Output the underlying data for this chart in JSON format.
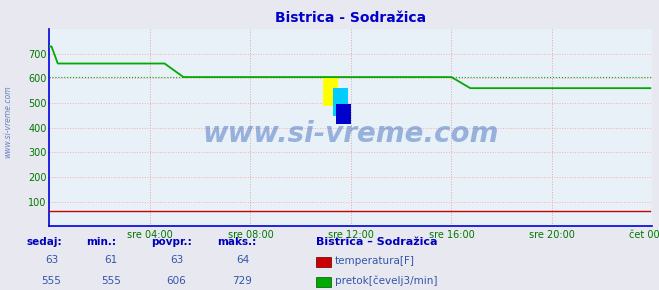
{
  "title": "Bistrica - Sodražica",
  "title_color": "#0000cc",
  "bg_color": "#e8e8f0",
  "plot_bg_color": "#e8f0f8",
  "grid_color_h": "#ffaaaa",
  "grid_color_v": "#ddaaaa",
  "xlabel_color": "#007700",
  "ylabel_color": "#007700",
  "border_color": "#0000dd",
  "xlim": [
    0,
    288
  ],
  "ylim": [
    0,
    800
  ],
  "yticks": [
    100,
    200,
    300,
    400,
    500,
    600,
    700
  ],
  "xtick_labels": [
    "sre 04:00",
    "sre 08:00",
    "sre 12:00",
    "sre 16:00",
    "sre 20:00",
    "čet 00:00"
  ],
  "xtick_positions": [
    48,
    96,
    144,
    192,
    240,
    288
  ],
  "avg_flow": 606,
  "watermark": "www.si-vreme.com",
  "sedaj_temp": 63,
  "min_temp": 61,
  "povpr_temp": 63,
  "maks_temp": 64,
  "sedaj_flow": 555,
  "min_flow": 555,
  "povpr_flow": 606,
  "maks_flow": 729,
  "temp_color": "#cc0000",
  "flow_color": "#00aa00",
  "avg_line_color": "#00aa00",
  "footer_color": "#3355aa",
  "footer_bold_color": "#0000bb",
  "left_label": "www.si-vreme.com"
}
